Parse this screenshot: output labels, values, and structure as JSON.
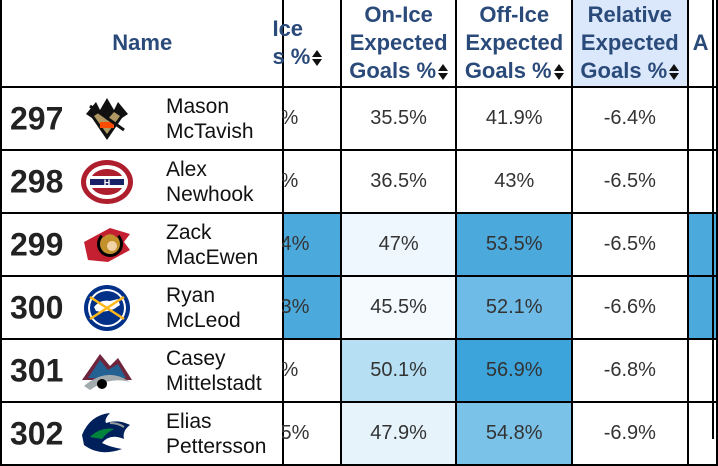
{
  "headers": {
    "name": "Name",
    "col1": [
      "Ice",
      "s %"
    ],
    "col2": [
      "On-Ice",
      "Expected",
      "Goals %"
    ],
    "col3": [
      "Off-Ice",
      "Expected",
      "Goals %"
    ],
    "col4": [
      "Relative",
      "Expected",
      "Goals %"
    ],
    "col5": "A"
  },
  "rows": [
    {
      "rank": "297",
      "first": "Mason",
      "last": "McTavish",
      "team_icon": "anaheim-ducks-logo-icon",
      "c1": "%",
      "c2": "35.5%",
      "c3": "41.9%",
      "c4": "-6.4%",
      "c1bg": "#ffffff",
      "c2bg": "#ffffff",
      "c3bg": "#ffffff"
    },
    {
      "rank": "298",
      "first": "Alex",
      "last": "Newhook",
      "team_icon": "montreal-canadiens-logo-icon",
      "c1": "%",
      "c2": "36.5%",
      "c3": "43%",
      "c4": "-6.5%",
      "c1bg": "#ffffff",
      "c2bg": "#ffffff",
      "c3bg": "#ffffff"
    },
    {
      "rank": "299",
      "first": "Zack",
      "last": "MacEwen",
      "team_icon": "ottawa-senators-logo-icon",
      "c1": "4%",
      "c2": "47%",
      "c3": "53.5%",
      "c4": "-6.5%",
      "c1bg": "#4ca9dc",
      "c2bg": "#eef7fd",
      "c3bg": "#4ca9dc"
    },
    {
      "rank": "300",
      "first": "Ryan",
      "last": "McLeod",
      "team_icon": "buffalo-sabres-logo-icon",
      "c1": "3%",
      "c2": "45.5%",
      "c3": "52.1%",
      "c4": "-6.6%",
      "c1bg": "#4ca9dc",
      "c2bg": "#f4fafe",
      "c3bg": "#6dbbe6"
    },
    {
      "rank": "301",
      "first": "Casey",
      "last": "Mittelstadt",
      "team_icon": "colorado-avalanche-logo-icon",
      "c1": "%",
      "c2": "50.1%",
      "c3": "56.9%",
      "c4": "-6.8%",
      "c1bg": "#ffffff",
      "c2bg": "#b7dff4",
      "c3bg": "#3da4db"
    },
    {
      "rank": "302",
      "first": "Elias",
      "last": "Pettersson",
      "team_icon": "vancouver-canucks-logo-icon",
      "c1": "5%",
      "c2": "47.9%",
      "c3": "54.8%",
      "c4": "-6.9%",
      "c1bg": "#ffffff",
      "c2bg": "#e6f3fb",
      "c3bg": "#7bc2e8"
    }
  ]
}
